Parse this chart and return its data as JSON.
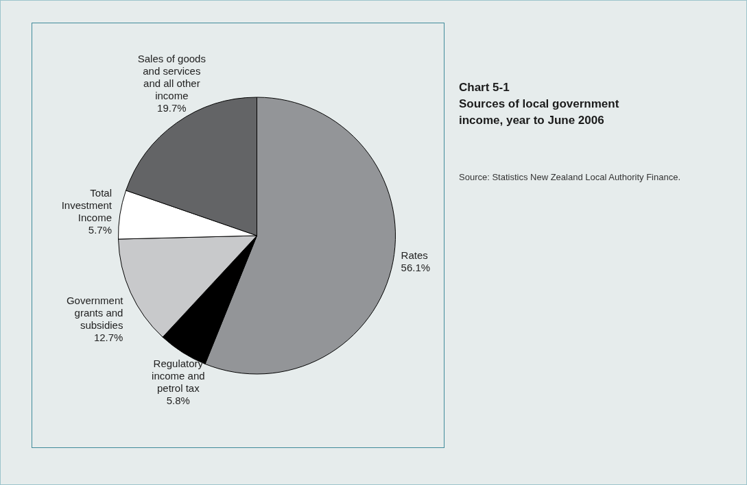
{
  "chart_data": {
    "type": "pie",
    "title": "Chart 5-1",
    "subtitle": "Sources of local government income, year to June 2006",
    "categories": [
      "Rates",
      "Regulatory income and petrol tax",
      "Government grants and subsidies",
      "Total Investment Income",
      "Sales of goods and services and all other income"
    ],
    "values": [
      56.1,
      5.8,
      12.7,
      5.7,
      19.7
    ],
    "colors": [
      "#939598",
      "#000000",
      "#c8c9cb",
      "#ffffff",
      "#636466"
    ],
    "value_labels": [
      "56.1%",
      "5.8%",
      "12.7%",
      "5.7%",
      "19.7%"
    ],
    "annotations": [
      "Source: Statistics New Zealand Local Authority Finance."
    ]
  }
}
